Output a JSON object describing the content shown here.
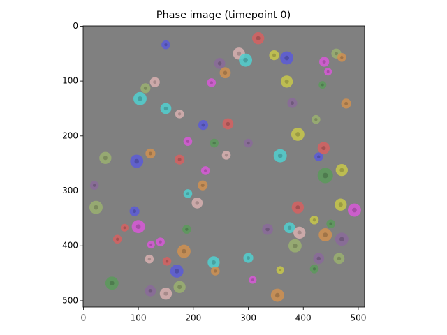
{
  "chart_data": {
    "type": "image",
    "title": "Phase image (timepoint 0)",
    "xlim": [
      -0.5,
      511.5
    ],
    "ylim": [
      511.5,
      -0.5
    ],
    "xticks": [
      0,
      100,
      200,
      300,
      400,
      500
    ],
    "yticks": [
      0,
      100,
      200,
      300,
      400,
      500
    ],
    "background": "#808080",
    "cells": {
      "x": [
        318,
        150,
        347,
        283,
        295,
        370,
        460,
        470,
        438,
        445,
        248,
        258,
        370,
        233,
        130,
        113,
        103,
        150,
        175,
        380,
        435,
        478,
        423,
        263,
        218,
        390,
        437,
        190,
        238,
        300,
        122,
        40,
        97,
        175,
        260,
        358,
        428,
        440,
        470,
        222,
        20,
        217,
        190,
        207,
        23,
        93,
        390,
        468,
        493,
        420,
        450,
        100,
        75,
        188,
        335,
        375,
        393,
        440,
        470,
        62,
        140,
        123,
        385,
        183,
        300,
        120,
        152,
        237,
        428,
        465,
        170,
        240,
        358,
        420,
        308,
        52,
        175,
        122,
        150,
        353
      ],
      "y": [
        22,
        34,
        53,
        50,
        62,
        58,
        50,
        57,
        65,
        83,
        68,
        85,
        101,
        103,
        102,
        113,
        132,
        150,
        160,
        140,
        107,
        141,
        170,
        178,
        180,
        197,
        222,
        210,
        213,
        213,
        232,
        240,
        246,
        243,
        235,
        236,
        238,
        272,
        262,
        263,
        290,
        290,
        305,
        322,
        330,
        337,
        330,
        325,
        335,
        353,
        360,
        365,
        367,
        370,
        370,
        367,
        376,
        380,
        388,
        388,
        393,
        398,
        400,
        410,
        422,
        424,
        428,
        430,
        423,
        423,
        446,
        446,
        444,
        442,
        462,
        468,
        475,
        482,
        487,
        490
      ],
      "size": [
        11,
        8,
        9,
        11,
        12,
        12,
        9,
        8,
        9,
        7,
        10,
        10,
        11,
        8,
        9,
        9,
        12,
        10,
        8,
        9,
        7,
        9,
        8,
        10,
        9,
        12,
        11,
        8,
        8,
        8,
        9,
        11,
        12,
        9,
        8,
        12,
        8,
        14,
        11,
        8,
        8,
        9,
        8,
        10,
        12,
        9,
        11,
        11,
        12,
        8,
        8,
        12,
        7,
        8,
        10,
        10,
        11,
        12,
        12,
        8,
        8,
        7,
        12,
        12,
        9,
        8,
        8,
        11,
        10,
        10,
        12,
        8,
        7,
        8,
        7,
        12,
        11,
        10,
        11,
        12
      ],
      "colors": [
        "#d66060",
        "#5a5ad8",
        "#c8c84a",
        "#d8b0b0",
        "#50d0d0",
        "#5a5ad8",
        "#9ab070",
        "#d09050",
        "#d858d8",
        "#d858d8",
        "#8a6a9a",
        "#d09050",
        "#c8c84a",
        "#d858d8",
        "#d8b0b0",
        "#9ab070",
        "#50d0d0",
        "#50d0d0",
        "#d8b0b0",
        "#8a6a9a",
        "#5a9a5a",
        "#d09050",
        "#9ab070",
        "#d66060",
        "#5a5ad8",
        "#c8c84a",
        "#d66060",
        "#d858d8",
        "#5a9a5a",
        "#8a6a9a",
        "#d09050",
        "#9ab070",
        "#5a5ad8",
        "#d66060",
        "#d8b0b0",
        "#50d0d0",
        "#5a5ad8",
        "#5a9a5a",
        "#c8c84a",
        "#d858d8",
        "#8a6a9a",
        "#d09050",
        "#50d0d0",
        "#d8b0b0",
        "#9ab070",
        "#5a5ad8",
        "#d66060",
        "#c8c84a",
        "#d858d8",
        "#c8c84a",
        "#5a9a5a",
        "#d858d8",
        "#d66060",
        "#5a9a5a",
        "#8a6a9a",
        "#50d0d0",
        "#d8b0b0",
        "#d09050",
        "#8a6a9a",
        "#d66060",
        "#d858d8",
        "#d858d8",
        "#9ab070",
        "#d09050",
        "#50d0d0",
        "#d8b0b0",
        "#d66060",
        "#50d0d0",
        "#8a6a9a",
        "#9ab070",
        "#5a5ad8",
        "#d09050",
        "#c8c84a",
        "#5a9a5a",
        "#d858d8",
        "#5a9a5a",
        "#9ab070",
        "#8a6a9a",
        "#d8b0b0",
        "#d09050"
      ]
    }
  }
}
